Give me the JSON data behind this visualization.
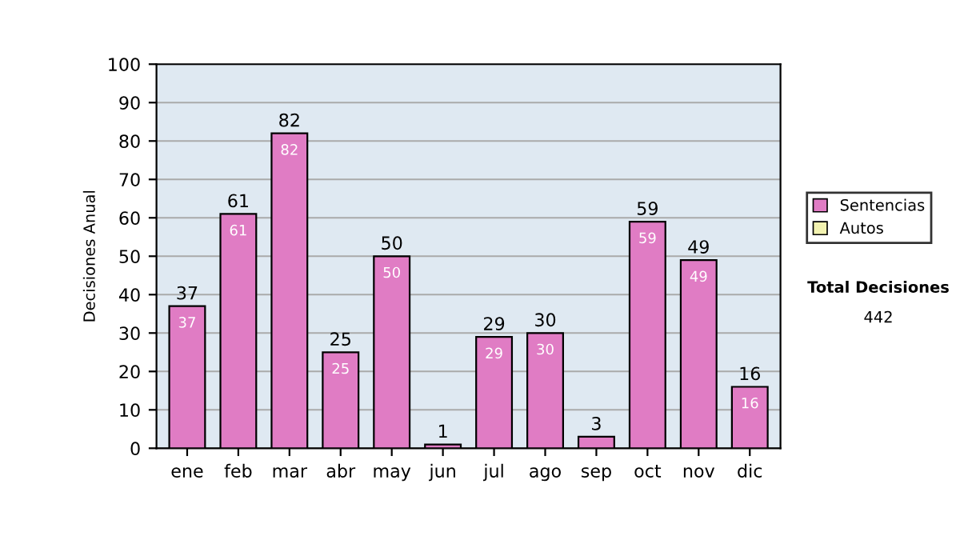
{
  "chart_data": {
    "type": "bar",
    "ylabel": "Decisiones Anual",
    "categories": [
      "ene",
      "feb",
      "mar",
      "abr",
      "may",
      "jun",
      "jul",
      "ago",
      "sep",
      "oct",
      "nov",
      "dic"
    ],
    "series": [
      {
        "name": "Sentencias",
        "color": "#e07cc4",
        "values": [
          37,
          61,
          82,
          25,
          50,
          1,
          29,
          30,
          3,
          59,
          49,
          16
        ],
        "value_labels": [
          "37",
          "61",
          "82",
          "25",
          "50",
          null,
          "29",
          "30",
          null,
          "59",
          "49",
          "16"
        ]
      },
      {
        "name": "Autos",
        "color": "#f2f2b0",
        "values": [
          null,
          null,
          null,
          null,
          null,
          null,
          null,
          null,
          null,
          null,
          null,
          null
        ]
      }
    ],
    "totals": [
      "37",
      "61",
      "82",
      "25",
      "50",
      "1",
      "29",
      "30",
      "3",
      "59",
      "49",
      "16"
    ],
    "ylim": [
      0,
      100
    ],
    "yticks": [
      0,
      10,
      20,
      30,
      40,
      50,
      60,
      70,
      80,
      90,
      100
    ],
    "grid": "y",
    "legend": "right",
    "annotations": [
      "Total Decisiones",
      "442"
    ]
  }
}
